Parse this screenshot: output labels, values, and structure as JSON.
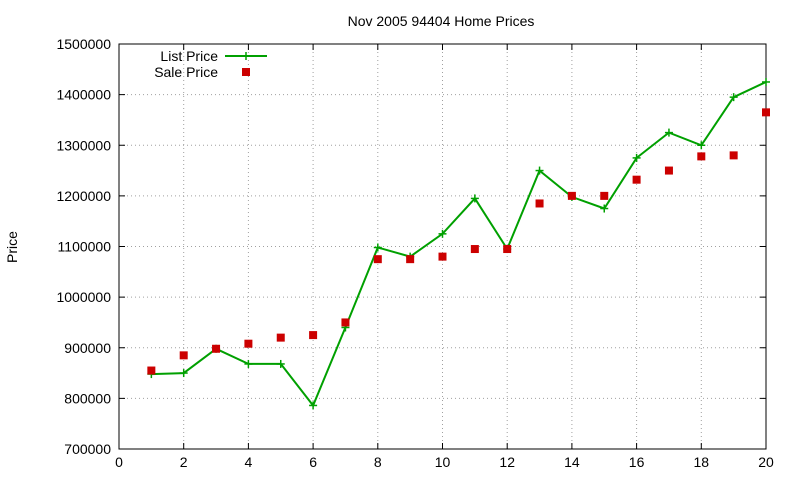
{
  "chart_data": {
    "type": "line",
    "title": "Nov 2005 94404 Home Prices",
    "xlabel": "",
    "ylabel": "Price",
    "xlim": [
      0,
      20
    ],
    "ylim": [
      700000,
      1500000
    ],
    "x_ticks": [
      0,
      2,
      4,
      6,
      8,
      10,
      12,
      14,
      16,
      18,
      20
    ],
    "y_ticks": [
      700000,
      800000,
      900000,
      1000000,
      1100000,
      1200000,
      1300000,
      1400000,
      1500000
    ],
    "grid": true,
    "legend_position": "top-left",
    "series": [
      {
        "name": "List Price",
        "style": "line-with-plus-markers",
        "color": "#00a000",
        "x": [
          1,
          2,
          3,
          4,
          5,
          6,
          7,
          8,
          9,
          10,
          11,
          12,
          13,
          14,
          15,
          16,
          17,
          18,
          19,
          20
        ],
        "y": [
          848000,
          850000,
          898000,
          868000,
          868000,
          786000,
          940000,
          1098000,
          1080000,
          1125000,
          1195000,
          1095000,
          1250000,
          1198000,
          1175000,
          1275000,
          1325000,
          1300000,
          1395000,
          1425000
        ]
      },
      {
        "name": "Sale Price",
        "style": "square-markers",
        "color": "#cc0000",
        "x": [
          1,
          2,
          3,
          4,
          5,
          6,
          7,
          8,
          9,
          10,
          11,
          12,
          13,
          14,
          15,
          16,
          17,
          18,
          19,
          20
        ],
        "y": [
          855000,
          885000,
          898000,
          908000,
          920000,
          925000,
          950000,
          1075000,
          1075000,
          1080000,
          1095000,
          1095000,
          1185000,
          1200000,
          1200000,
          1232000,
          1250000,
          1278000,
          1280000,
          1365000
        ]
      }
    ]
  }
}
